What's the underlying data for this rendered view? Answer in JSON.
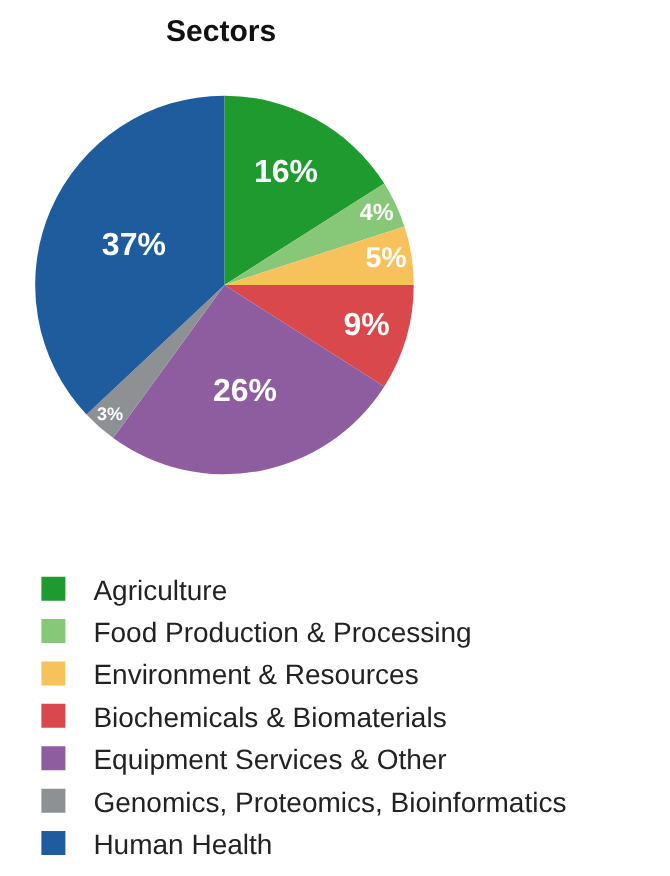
{
  "chart_data": {
    "type": "pie",
    "title": "Sectors",
    "categories": [
      "Agriculture",
      "Food Production & Processing",
      "Environment & Resources",
      "Biochemicals & Biomaterials",
      "Equipment Services & Other",
      "Genomics, Proteomics, Bioinformatics",
      "Human Health"
    ],
    "values": [
      16,
      4,
      5,
      9,
      26,
      3,
      37
    ],
    "value_labels": [
      "16%",
      "4%",
      "5%",
      "9%",
      "26%",
      "3%",
      "37%"
    ],
    "colors": [
      "#1f9a2e",
      "#86c878",
      "#f7c25c",
      "#d9484a",
      "#8e5d9f",
      "#8e9194",
      "#1f5c9e"
    ],
    "legend": "bottom"
  }
}
